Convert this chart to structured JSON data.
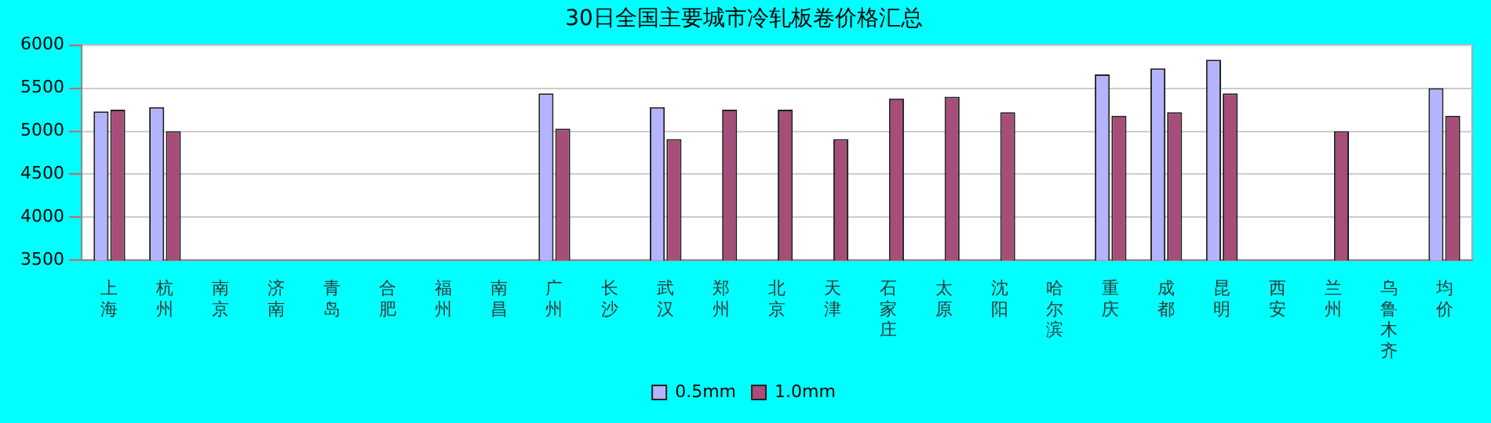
{
  "chart_data": {
    "type": "bar",
    "title": "30日全国主要城市冷轧板卷价格汇总",
    "categories": [
      "上海",
      "杭州",
      "南京",
      "济南",
      "青岛",
      "合肥",
      "福州",
      "南昌",
      "广州",
      "长沙",
      "武汉",
      "郑州",
      "北京",
      "天津",
      "石家庄",
      "太原",
      "沈阳",
      "哈尔滨",
      "重庆",
      "成都",
      "昆明",
      "西安",
      "兰州",
      "乌鲁木齐",
      "均价"
    ],
    "series": [
      {
        "name": "0.5mm",
        "color": "#b3b3ff",
        "values": [
          5230,
          5280,
          null,
          null,
          null,
          null,
          null,
          null,
          5440,
          null,
          5280,
          null,
          null,
          null,
          null,
          null,
          null,
          null,
          5660,
          5730,
          5830,
          null,
          null,
          null,
          5500
        ]
      },
      {
        "name": "1.0mm",
        "color": "#a64d79",
        "values": [
          5250,
          5000,
          null,
          null,
          null,
          null,
          null,
          null,
          5030,
          null,
          4910,
          5250,
          5250,
          4910,
          5380,
          5400,
          5220,
          null,
          5180,
          5220,
          5440,
          null,
          5000,
          null,
          5180
        ]
      }
    ],
    "ylim": [
      3500,
      6000
    ],
    "yticks": [
      3500,
      4000,
      4500,
      5000,
      5500,
      6000
    ],
    "grid": "y",
    "legend": "bottom"
  }
}
